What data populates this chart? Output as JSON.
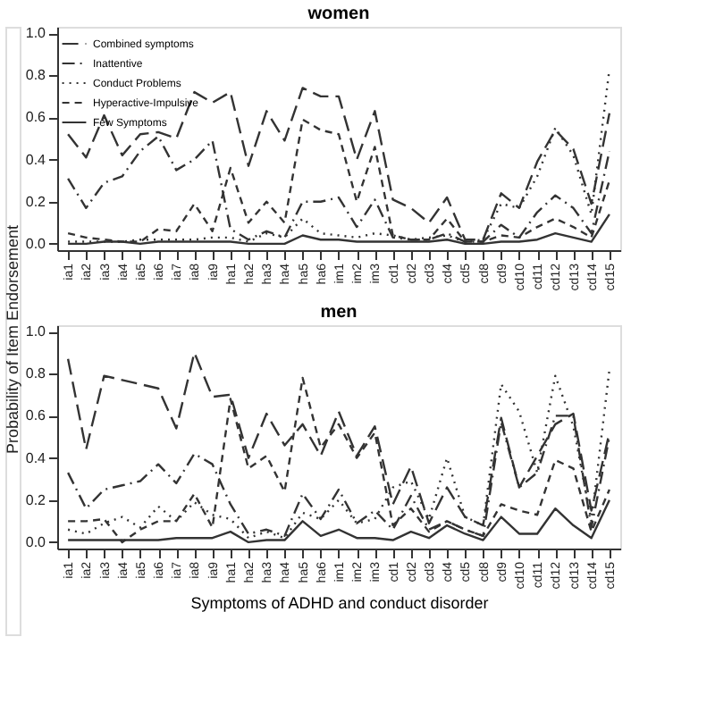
{
  "chart_data": [
    {
      "type": "line",
      "title": "women",
      "categories": [
        "ia1",
        "ia2",
        "ia3",
        "ia4",
        "ia5",
        "ia6",
        "ia7",
        "ia8",
        "ia9",
        "ha1",
        "ha2",
        "ha3",
        "ha4",
        "ha5",
        "ha6",
        "im1",
        "im2",
        "im3",
        "cd1",
        "cd2",
        "cd3",
        "cd4",
        "cd5",
        "cd8",
        "cd9",
        "cd10",
        "cd11",
        "cd12",
        "cd13",
        "cd14",
        "cd15"
      ],
      "ylim": [
        -0.03,
        1.03
      ],
      "yticks": [
        {
          "value": 0,
          "label": "0.0"
        },
        {
          "value": 0.2,
          "label": "0.2"
        },
        {
          "value": 0.4,
          "label": "0.4"
        },
        {
          "value": 0.6,
          "label": "0.6"
        },
        {
          "value": 0.8,
          "label": "0.8"
        },
        {
          "value": 1,
          "label": "1.0"
        }
      ],
      "grid": false,
      "legend": "top left",
      "marker": "none",
      "series": [
        {
          "name": "Combined symptoms",
          "color": "#333333",
          "line_style": "longdash",
          "values": [
            0.52,
            0.41,
            0.61,
            0.42,
            0.52,
            0.53,
            0.5,
            0.72,
            0.67,
            0.72,
            0.37,
            0.63,
            0.49,
            0.74,
            0.7,
            0.7,
            0.4,
            0.63,
            0.21,
            0.17,
            0.1,
            0.22,
            0.02,
            0.02,
            0.24,
            0.17,
            0.39,
            0.54,
            0.45,
            0.19,
            0.62
          ]
        },
        {
          "name": "Inattentive",
          "color": "#333333",
          "line_style": "dashdot",
          "values": [
            0.31,
            0.17,
            0.29,
            0.32,
            0.44,
            0.51,
            0.35,
            0.4,
            0.49,
            0.07,
            0.02,
            0.06,
            0.03,
            0.2,
            0.2,
            0.22,
            0.08,
            0.21,
            0.03,
            0.02,
            0.02,
            0.05,
            0.01,
            0.01,
            0.09,
            0.03,
            0.15,
            0.23,
            0.17,
            0.05,
            0.44
          ]
        },
        {
          "name": "Conduct Problems",
          "color": "#333333",
          "line_style": "dotted",
          "values": [
            0.01,
            0.01,
            0.01,
            0.01,
            0.02,
            0.02,
            0.02,
            0.02,
            0.03,
            0.03,
            0.01,
            0.05,
            0.03,
            0.12,
            0.05,
            0.04,
            0.03,
            0.05,
            0.04,
            0.02,
            0.03,
            0.04,
            0.01,
            0.02,
            0.19,
            0.17,
            0.32,
            0.55,
            0.42,
            0.14,
            0.83
          ]
        },
        {
          "name": "Hyperactive-Impulsive",
          "color": "#333333",
          "line_style": "dashed",
          "values": [
            0.05,
            0.03,
            0.02,
            0.01,
            0.01,
            0.07,
            0.06,
            0.19,
            0.06,
            0.36,
            0.1,
            0.2,
            0.1,
            0.59,
            0.54,
            0.52,
            0.2,
            0.46,
            0.04,
            0.02,
            0.02,
            0.12,
            0.01,
            0.01,
            0.04,
            0.03,
            0.08,
            0.12,
            0.08,
            0.03,
            0.3
          ]
        },
        {
          "name": "Few Symptoms",
          "color": "#333333",
          "line_style": "solid",
          "values": [
            0.0,
            0.0,
            0.01,
            0.01,
            0.0,
            0.01,
            0.01,
            0.01,
            0.01,
            0.01,
            0.0,
            0.0,
            0.0,
            0.04,
            0.02,
            0.02,
            0.01,
            0.01,
            0.01,
            0.01,
            0.01,
            0.02,
            0.0,
            0.0,
            0.01,
            0.01,
            0.02,
            0.05,
            0.03,
            0.01,
            0.14
          ]
        }
      ]
    },
    {
      "type": "line",
      "title": "men",
      "xlabel": "Symptoms of ADHD and conduct disorder",
      "ylabel": "Probability of Item Endorsement",
      "categories": [
        "ia1",
        "ia2",
        "ia3",
        "ia4",
        "ia5",
        "ia6",
        "ia7",
        "ia8",
        "ia9",
        "ha1",
        "ha2",
        "ha3",
        "ha4",
        "ha5",
        "ha6",
        "im1",
        "im2",
        "im3",
        "cd1",
        "cd2",
        "cd3",
        "cd4",
        "cd5",
        "cd8",
        "cd9",
        "cd10",
        "cd11",
        "cd12",
        "cd13",
        "cd14",
        "cd15"
      ],
      "ylim": [
        -0.03,
        1.03
      ],
      "yticks": [
        {
          "value": 0,
          "label": "0.0"
        },
        {
          "value": 0.2,
          "label": "0.2"
        },
        {
          "value": 0.4,
          "label": "0.4"
        },
        {
          "value": 0.6,
          "label": "0.6"
        },
        {
          "value": 0.8,
          "label": "0.8"
        },
        {
          "value": 1,
          "label": "1.0"
        }
      ],
      "grid": false,
      "marker": "none",
      "series": [
        {
          "color": "#333333",
          "line_style": "longdash",
          "values": [
            0.87,
            0.44,
            0.79,
            0.77,
            0.75,
            0.73,
            0.54,
            0.9,
            0.69,
            0.7,
            0.4,
            0.61,
            0.46,
            0.56,
            0.41,
            0.62,
            0.41,
            0.55,
            0.18,
            0.36,
            0.09,
            0.26,
            0.12,
            0.08,
            0.59,
            0.26,
            0.41,
            0.56,
            0.61,
            0.15,
            0.52
          ]
        },
        {
          "color": "#333333",
          "line_style": "dashdot",
          "values": [
            0.33,
            0.16,
            0.25,
            0.27,
            0.29,
            0.37,
            0.28,
            0.42,
            0.37,
            0.18,
            0.04,
            0.06,
            0.03,
            0.23,
            0.11,
            0.25,
            0.09,
            0.15,
            0.06,
            0.22,
            0.06,
            0.1,
            0.06,
            0.03,
            0.57,
            0.26,
            0.33,
            0.6,
            0.6,
            0.07,
            0.5
          ]
        },
        {
          "color": "#333333",
          "line_style": "dotted",
          "values": [
            0.06,
            0.04,
            0.09,
            0.12,
            0.07,
            0.17,
            0.1,
            0.19,
            0.13,
            0.11,
            0.02,
            0.05,
            0.02,
            0.14,
            0.11,
            0.2,
            0.09,
            0.11,
            0.26,
            0.29,
            0.11,
            0.4,
            0.12,
            0.08,
            0.75,
            0.62,
            0.33,
            0.79,
            0.55,
            0.1,
            0.82
          ]
        },
        {
          "color": "#333333",
          "line_style": "dashed",
          "values": [
            0.1,
            0.1,
            0.11,
            0.0,
            0.06,
            0.1,
            0.1,
            0.23,
            0.07,
            0.68,
            0.35,
            0.41,
            0.24,
            0.78,
            0.45,
            0.56,
            0.4,
            0.52,
            0.08,
            0.16,
            0.05,
            0.1,
            0.06,
            0.03,
            0.18,
            0.15,
            0.13,
            0.39,
            0.35,
            0.05,
            0.25
          ]
        },
        {
          "color": "#333333",
          "line_style": "solid",
          "values": [
            0.01,
            0.01,
            0.01,
            0.01,
            0.01,
            0.01,
            0.02,
            0.02,
            0.02,
            0.05,
            0.0,
            0.01,
            0.01,
            0.1,
            0.03,
            0.06,
            0.02,
            0.02,
            0.01,
            0.05,
            0.02,
            0.08,
            0.04,
            0.01,
            0.12,
            0.04,
            0.04,
            0.16,
            0.08,
            0.02,
            0.2
          ]
        }
      ]
    }
  ]
}
